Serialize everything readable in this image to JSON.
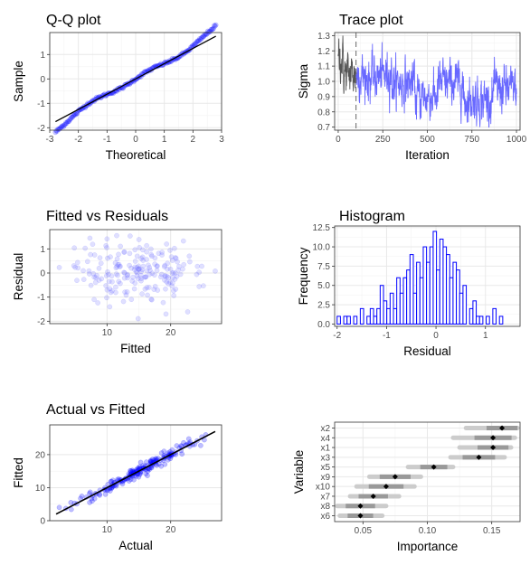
{
  "chart_data": [
    {
      "id": "qq",
      "type": "scatter",
      "title": "Q-Q plot",
      "xlabel": "Theoretical",
      "ylabel": "Sample",
      "xlim": [
        -3.0,
        3.0
      ],
      "ylim": [
        -2.1,
        1.9
      ],
      "xticks": [
        -3,
        -2,
        -1,
        0,
        1,
        2,
        3
      ],
      "yticks": [
        -2,
        -1,
        0,
        1
      ],
      "point_count": 200,
      "reference_line": {
        "x": [
          -2.8,
          2.8
        ],
        "y": [
          -1.75,
          1.75
        ]
      },
      "series_color": "#0000ff",
      "line_color": "#000000"
    },
    {
      "id": "trace",
      "type": "line",
      "title": "Trace plot",
      "xlabel": "Iteration",
      "ylabel": "Sigma",
      "xlim": [
        -20,
        1020
      ],
      "ylim": [
        0.68,
        1.32
      ],
      "xticks": [
        0,
        250,
        500,
        750,
        1000
      ],
      "yticks": [
        0.7,
        0.8,
        0.9,
        1.0,
        1.1,
        1.2,
        1.3
      ],
      "burn_in": 100,
      "series": [
        {
          "name": "burn-in",
          "color": "#555555"
        },
        {
          "name": "sampling",
          "color": "#4d4dff"
        }
      ]
    },
    {
      "id": "fvr",
      "type": "scatter",
      "title": "Fitted vs Residuals",
      "xlabel": "Fitted",
      "ylabel": "Residual",
      "xlim": [
        1,
        28
      ],
      "ylim": [
        -2.1,
        1.8
      ],
      "xticks": [
        10,
        20
      ],
      "yticks": [
        -2,
        -1,
        0,
        1
      ],
      "point_count": 200,
      "series_color": "#6666ff"
    },
    {
      "id": "hist",
      "type": "bar",
      "title": "Histogram",
      "xlabel": "Residual",
      "ylabel": "Frequency",
      "xlim": [
        -2.05,
        1.7
      ],
      "ylim": [
        -0.3,
        12.7
      ],
      "xticks": [
        -2,
        -1,
        0,
        1
      ],
      "yticks": [
        0.0,
        2.5,
        5.0,
        7.5,
        10.0,
        12.5
      ],
      "bin_start": -2.0,
      "bin_width": 0.1,
      "counts": [
        1,
        0,
        1,
        1,
        0,
        1,
        0,
        2,
        0,
        1,
        2,
        1,
        2,
        5,
        3,
        2,
        4,
        2,
        6,
        4,
        6,
        7,
        9,
        4,
        8,
        6,
        10,
        8,
        10,
        12,
        7,
        11,
        10,
        9,
        6,
        8,
        7,
        4,
        5,
        0,
        2,
        3,
        1,
        1,
        0,
        1,
        0,
        2,
        0,
        1,
        0,
        0,
        0,
        0,
        0,
        0
      ],
      "bar_outline": "#0000ff",
      "bar_fill": "#ffffff"
    },
    {
      "id": "avf",
      "type": "scatter",
      "title": "Actual vs Fitted",
      "xlabel": "Actual",
      "ylabel": "Fitted",
      "xlim": [
        1,
        28
      ],
      "ylim": [
        0,
        29
      ],
      "xticks": [
        10,
        20
      ],
      "yticks": [
        0,
        10,
        20
      ],
      "point_count": 200,
      "reference_line": {
        "x": [
          2,
          27
        ],
        "y": [
          2,
          27
        ]
      },
      "series_color": "#0000ff",
      "line_color": "#000000"
    },
    {
      "id": "vimp",
      "type": "scatter",
      "title": "",
      "xlabel": "Importance",
      "ylabel": "Variable",
      "xlim": [
        0.028,
        0.172
      ],
      "xticks": [
        0.05,
        0.1,
        0.15
      ],
      "xtick_labels": [
        "0.05",
        "0.10",
        "0.15"
      ],
      "categories": [
        "x2",
        "x4",
        "x1",
        "x3",
        "x5",
        "x9",
        "x10",
        "x7",
        "x8",
        "x6"
      ],
      "values": [
        0.158,
        0.151,
        0.151,
        0.14,
        0.105,
        0.075,
        0.068,
        0.058,
        0.048,
        0.048
      ],
      "intervals": [
        [
          0.13,
          0.17
        ],
        [
          0.12,
          0.168
        ],
        [
          0.125,
          0.165
        ],
        [
          0.118,
          0.16
        ],
        [
          0.085,
          0.12
        ],
        [
          0.055,
          0.095
        ],
        [
          0.045,
          0.09
        ],
        [
          0.04,
          0.078
        ],
        [
          0.03,
          0.068
        ],
        [
          0.032,
          0.065
        ]
      ],
      "point_color": "#000000"
    }
  ]
}
